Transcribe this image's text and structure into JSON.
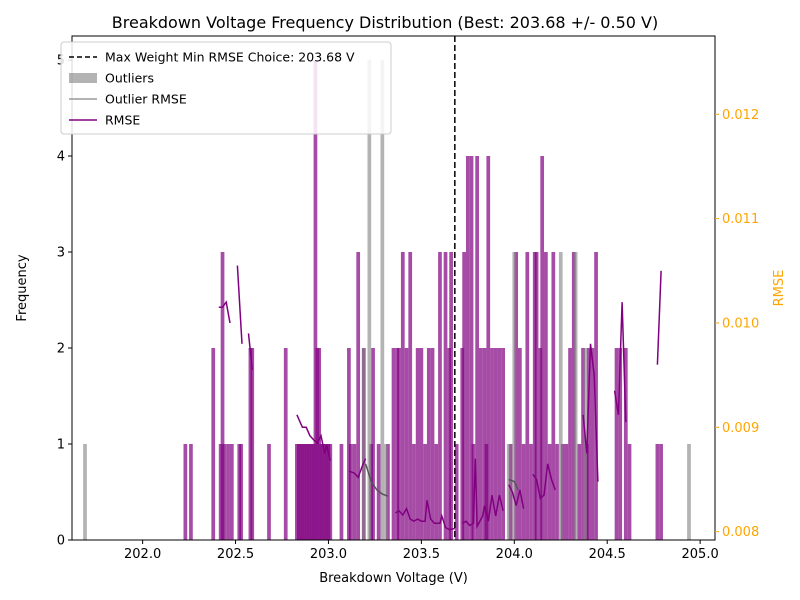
{
  "chart_data": {
    "type": "bar",
    "title": "Breakdown Voltage Frequency Distribution (Best: 203.68 +/- 0.50 V)",
    "xlabel": "Breakdown Voltage (V)",
    "ylabel": "Frequency",
    "y2label": "RMSE",
    "xlim": [
      201.62,
      205.08
    ],
    "ylim": [
      0,
      5.25
    ],
    "y2lim": [
      0.00792,
      0.01275
    ],
    "x_ticks": [
      202.0,
      202.5,
      203.0,
      203.5,
      204.0,
      204.5,
      205.0
    ],
    "x_tick_labels": [
      "202.0",
      "202.5",
      "203.0",
      "203.5",
      "204.0",
      "204.5",
      "205.0"
    ],
    "y_ticks": [
      0,
      1,
      2,
      3,
      4,
      5
    ],
    "y_tick_labels": [
      "0",
      "1",
      "2",
      "3",
      "4",
      "5"
    ],
    "y2_ticks": [
      0.008,
      0.009,
      0.01,
      0.011,
      0.012
    ],
    "y2_tick_labels": [
      "0.008",
      "0.009",
      "0.010",
      "0.011",
      "0.012"
    ],
    "bin_width": 0.02,
    "best_choice": 203.68,
    "legend_position": "upper-left",
    "colors": {
      "selected": "#800080",
      "outliers": "#808080",
      "rmse": "#800080",
      "outlier_rmse": "#555555",
      "vline": "#000000",
      "rmse_axis": "#FFA500"
    },
    "legend": [
      {
        "label": "Max Weight Min RMSE Choice: 203.68 V",
        "style": "dashed"
      },
      {
        "label": "Outliers",
        "style": "patch"
      },
      {
        "label": "Outlier RMSE",
        "style": "line-gray"
      },
      {
        "label": "RMSE",
        "style": "line-purple"
      }
    ],
    "series": [
      {
        "name": "Selected",
        "x": [
          202.23,
          202.26,
          202.38,
          202.42,
          202.43,
          202.44,
          202.46,
          202.48,
          202.52,
          202.53,
          202.58,
          202.59,
          202.68,
          202.77,
          202.83,
          202.84,
          202.85,
          202.86,
          202.87,
          202.88,
          202.89,
          202.9,
          202.91,
          202.92,
          202.93,
          202.94,
          202.95,
          202.96,
          202.97,
          202.98,
          202.99,
          203.0,
          203.01,
          203.07,
          203.11,
          203.12,
          203.14,
          203.16,
          203.19,
          203.23,
          203.24,
          203.27,
          203.32,
          203.35,
          203.37,
          203.38,
          203.4,
          203.42,
          203.44,
          203.46,
          203.48,
          203.5,
          203.52,
          203.54,
          203.56,
          203.58,
          203.6,
          203.63,
          203.65,
          203.66,
          203.69,
          203.72,
          203.73,
          203.75,
          203.77,
          203.78,
          203.8,
          203.82,
          203.84,
          203.85,
          203.86,
          203.88,
          203.9,
          203.92,
          203.94,
          203.98,
          204.01,
          204.03,
          204.05,
          204.07,
          204.09,
          204.11,
          204.12,
          204.14,
          204.15,
          204.17,
          204.19,
          204.21,
          204.23,
          204.26,
          204.28,
          204.3,
          204.32,
          204.35,
          204.37,
          204.39,
          204.4,
          204.42,
          204.44,
          204.55,
          204.57,
          204.6,
          204.62,
          204.77,
          204.79
        ],
        "values": [
          1,
          1,
          2,
          1,
          3,
          1,
          1,
          1,
          1,
          1,
          2,
          2,
          1,
          2,
          1,
          1,
          1,
          1,
          1,
          1,
          1,
          1,
          1,
          1,
          5,
          2,
          2,
          1,
          1,
          1,
          1,
          1,
          1,
          1,
          2,
          1,
          1,
          3,
          2,
          1,
          2,
          1,
          1,
          2,
          2,
          2,
          3,
          2,
          3,
          1,
          2,
          2,
          1,
          2,
          2,
          1,
          3,
          3,
          2,
          3,
          1,
          2,
          3,
          4,
          4,
          1,
          4,
          2,
          2,
          1,
          4,
          2,
          2,
          2,
          2,
          1,
          3,
          2,
          1,
          3,
          1,
          3,
          3,
          2,
          4,
          3,
          1,
          3,
          1,
          1,
          1,
          2,
          3,
          1,
          2,
          1,
          2,
          2,
          3,
          2,
          2,
          2,
          1,
          1,
          1
        ]
      },
      {
        "name": "Outliers",
        "x": [
          201.69,
          203.19,
          203.22,
          203.29,
          203.31,
          203.97,
          204.0,
          204.25,
          204.33,
          204.38,
          204.94
        ],
        "values": [
          1,
          2,
          5,
          5,
          1,
          1,
          3,
          3,
          3,
          2,
          1
        ]
      }
    ],
    "rmse_segments": [
      [
        [
          202.41,
          0.01015
        ],
        [
          202.43,
          0.01015
        ],
        [
          202.45,
          0.0102
        ],
        [
          202.47,
          0.01
        ]
      ],
      [
        [
          202.51,
          0.01055
        ],
        [
          202.535,
          0.0098
        ]
      ],
      [
        [
          202.57,
          0.0099
        ],
        [
          202.59,
          0.00955
        ]
      ],
      [
        [
          202.83,
          0.00912
        ],
        [
          202.86,
          0.009
        ],
        [
          202.88,
          0.009
        ],
        [
          202.9,
          0.00892
        ],
        [
          202.92,
          0.00888
        ],
        [
          202.94,
          0.00885
        ],
        [
          202.96,
          0.00892
        ],
        [
          202.98,
          0.00875
        ],
        [
          202.99,
          0.00883
        ],
        [
          203.01,
          0.00868
        ]
      ],
      [
        [
          203.11,
          0.00858
        ],
        [
          203.14,
          0.00856
        ],
        [
          203.16,
          0.00852
        ],
        [
          203.18,
          0.00862
        ],
        [
          203.2,
          0.0087
        ]
      ],
      [
        [
          203.36,
          0.00818
        ],
        [
          203.38,
          0.0082
        ],
        [
          203.4,
          0.00816
        ],
        [
          203.42,
          0.00822
        ],
        [
          203.44,
          0.00812
        ],
        [
          203.46,
          0.0081
        ],
        [
          203.48,
          0.00812
        ],
        [
          203.5,
          0.0081
        ],
        [
          203.52,
          0.0081
        ],
        [
          203.53,
          0.0083
        ],
        [
          203.55,
          0.00812
        ],
        [
          203.57,
          0.00808
        ],
        [
          203.6,
          0.00808
        ],
        [
          203.61,
          0.00815
        ],
        [
          203.63,
          0.00804
        ],
        [
          203.65,
          0.00802
        ],
        [
          203.68,
          0.00803
        ]
      ],
      [
        [
          203.72,
          0.00808
        ],
        [
          203.74,
          0.0081
        ],
        [
          203.76,
          0.00806
        ],
        [
          203.78,
          0.00808
        ],
        [
          203.79,
          0.0087
        ],
        [
          203.8,
          0.00805
        ],
        [
          203.83,
          0.00815
        ],
        [
          203.84,
          0.00825
        ],
        [
          203.86,
          0.0081
        ],
        [
          203.88,
          0.00835
        ],
        [
          203.9,
          0.00815
        ],
        [
          203.92,
          0.00835
        ],
        [
          203.94,
          0.0082
        ]
      ],
      [
        [
          203.97,
          0.00845
        ],
        [
          203.99,
          0.00838
        ],
        [
          204.01,
          0.00825
        ],
        [
          204.03,
          0.0084
        ],
        [
          204.05,
          0.00822
        ]
      ],
      [
        [
          204.1,
          0.00855
        ],
        [
          204.12,
          0.0085
        ],
        [
          204.14,
          0.00832
        ],
        [
          204.16,
          0.00835
        ],
        [
          204.18,
          0.00865
        ],
        [
          204.2,
          0.0085
        ],
        [
          204.22,
          0.0084
        ]
      ],
      [
        [
          204.37,
          0.00912
        ],
        [
          204.39,
          0.00875
        ],
        [
          204.41,
          0.0098
        ],
        [
          204.43,
          0.0095
        ],
        [
          204.45,
          0.00848
        ]
      ],
      [
        [
          204.54,
          0.00935
        ],
        [
          204.56,
          0.00912
        ],
        [
          204.58,
          0.0102
        ],
        [
          204.6,
          0.00905
        ]
      ],
      [
        [
          204.77,
          0.0096
        ],
        [
          204.79,
          0.0105
        ]
      ]
    ],
    "outlier_rmse_segments": [
      [
        [
          203.2,
          0.00865
        ],
        [
          203.23,
          0.00848
        ],
        [
          203.26,
          0.0084
        ],
        [
          203.29,
          0.00836
        ],
        [
          203.32,
          0.00834
        ]
      ],
      [
        [
          203.97,
          0.0085
        ],
        [
          204.0,
          0.00848
        ],
        [
          204.02,
          0.0084
        ]
      ]
    ]
  }
}
